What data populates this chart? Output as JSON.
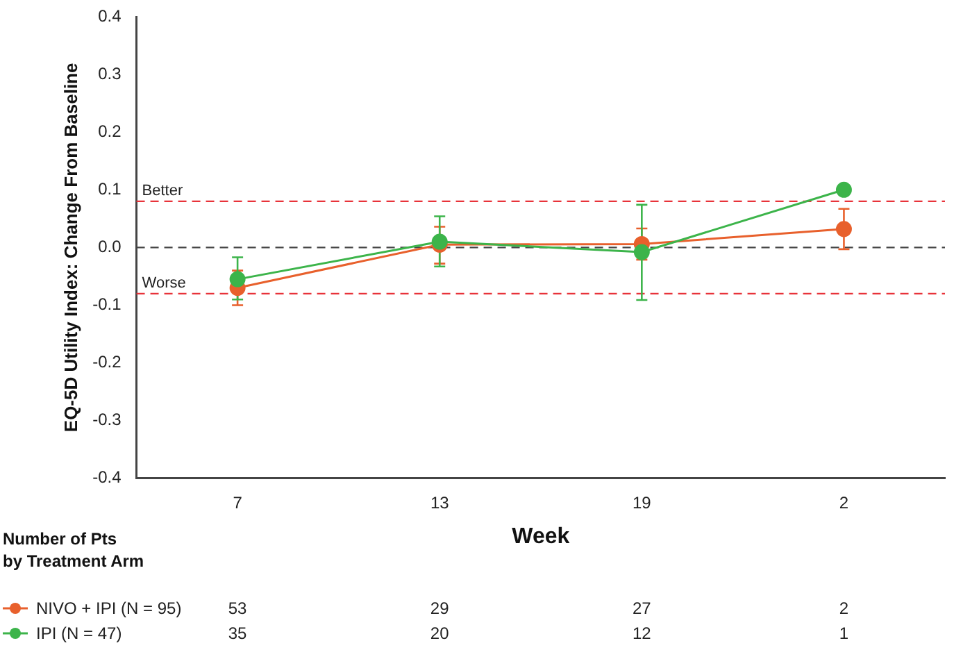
{
  "chart_data": {
    "type": "line",
    "xlabel": "Week",
    "ylabel": "EQ-5D Utility Index: Change From Baseline",
    "legend_title": "Number of Pts\nby Treatment Arm",
    "legend": "bottom",
    "marker": "circle",
    "grid": false,
    "categories": [
      "7",
      "13",
      "19",
      "2"
    ],
    "series": [
      {
        "name": "NIVO + IPI (N = 95)",
        "color": "#e8602c",
        "values": [
          -0.07,
          0.005,
          0.006,
          0.032
        ],
        "errors": [
          [
            -0.1,
            -0.04
          ],
          [
            -0.028,
            0.036
          ],
          [
            -0.021,
            0.033
          ],
          [
            -0.003,
            0.067
          ]
        ]
      },
      {
        "name": "IPI (N = 47)",
        "color": "#3cb44a",
        "values": [
          -0.055,
          0.01,
          -0.008,
          0.1
        ],
        "errors": [
          [
            -0.09,
            -0.017
          ],
          [
            -0.033,
            0.054
          ],
          [
            -0.091,
            0.074
          ],
          null
        ]
      }
    ],
    "ylim": [
      -0.4,
      0.4
    ],
    "yticks": [
      {
        "value": -0.4,
        "label": "-0.4"
      },
      {
        "value": -0.3,
        "label": "-0.3"
      },
      {
        "value": -0.2,
        "label": "-0.2"
      },
      {
        "value": -0.1,
        "label": "-0.1"
      },
      {
        "value": 0,
        "label": "0.0"
      },
      0.1,
      0.2,
      0.3,
      0.4
    ],
    "ref_lines": [
      {
        "axis": "y",
        "value": 0.08,
        "label": "Better",
        "color": "#e8333a",
        "line_style": "dashed"
      },
      {
        "axis": "y",
        "value": 0,
        "label": null,
        "color": "#444444",
        "line_style": "dashed"
      },
      {
        "axis": "y",
        "value": -0.08,
        "label": "Worse",
        "color": "#e8333a",
        "line_style": "dashed"
      }
    ],
    "annotations": [
      "53",
      "29",
      "27",
      "2",
      "35",
      "20",
      "12",
      "1"
    ]
  }
}
